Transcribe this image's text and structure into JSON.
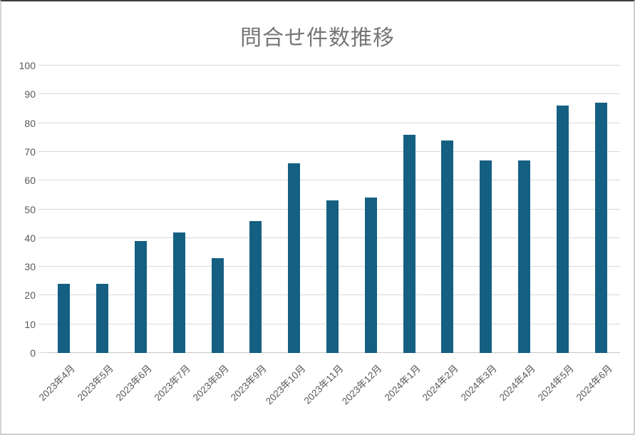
{
  "chart": {
    "colors": {
      "bar": "#156082",
      "gridline": "#d9d9d9",
      "axis_line": "#c6c6c6",
      "title_text": "#767676",
      "tick_text": "#595959"
    }
  },
  "chart_data": {
    "type": "bar",
    "title": "問合せ件数推移",
    "categories": [
      "2023年4月",
      "2023年5月",
      "2023年6月",
      "2023年7月",
      "2023年8月",
      "2023年9月",
      "2023年10月",
      "2023年11月",
      "2023年12月",
      "2024年1月",
      "2024年2月",
      "2024年3月",
      "2024年4月",
      "2024年5月",
      "2024年6月"
    ],
    "values": [
      24,
      24,
      39,
      42,
      33,
      46,
      66,
      53,
      54,
      76,
      74,
      67,
      67,
      86,
      87
    ],
    "xlabel": "",
    "ylabel": "",
    "ylim": [
      0,
      100
    ],
    "yticks": [
      0,
      10,
      20,
      30,
      40,
      50,
      60,
      70,
      80,
      90,
      100
    ],
    "grid": true,
    "legend": false
  }
}
